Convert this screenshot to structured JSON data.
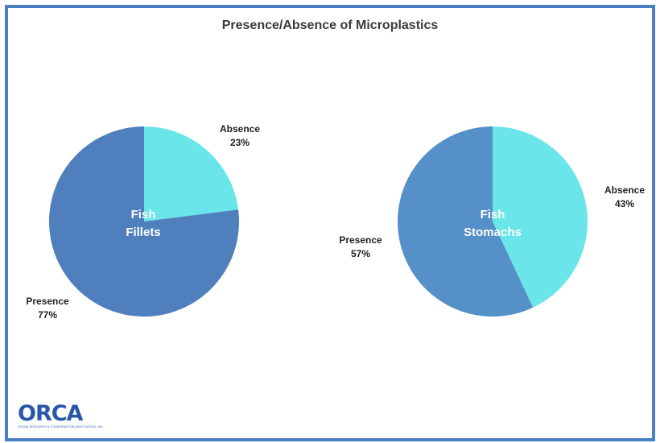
{
  "colors": {
    "presence_fillets": "#4f7fbd",
    "presence_stomachs": "#5590c8",
    "absence": "#6ae5ea",
    "frame": "#4a7fc1"
  },
  "chart_data": [
    {
      "type": "pie",
      "title": "Presence/Absence of Microplastics",
      "center_label": [
        "Fish",
        "Fillets"
      ],
      "slices": [
        {
          "label": "Absence",
          "value": 23,
          "value_text": "23%",
          "color": "#6ae5ea"
        },
        {
          "label": "Presence",
          "value": 77,
          "value_text": "77%",
          "color": "#4f7fbd"
        }
      ]
    },
    {
      "type": "pie",
      "title": "Presence/Absence of Microplastics",
      "center_label": [
        "Fish",
        "Stomachs"
      ],
      "slices": [
        {
          "label": "Absence",
          "value": 43,
          "value_text": "43%",
          "color": "#6ae5ea"
        },
        {
          "label": "Presence",
          "value": 57,
          "value_text": "57%",
          "color": "#5590c8"
        }
      ]
    }
  ],
  "logo": {
    "text": "ORCA",
    "subtext": "OCEAN RESEARCH & CONSERVATION ASSOCIATION, INC."
  }
}
